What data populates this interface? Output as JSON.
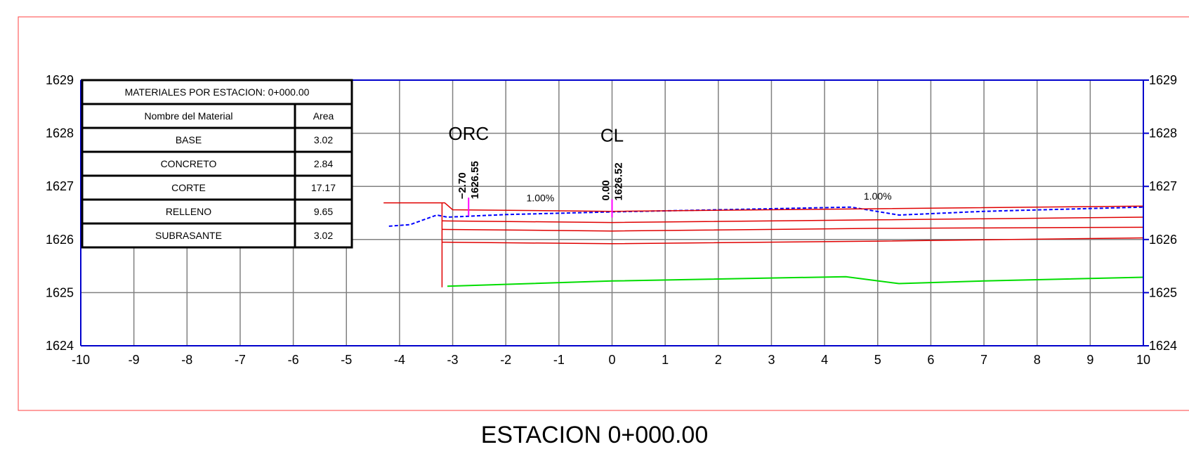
{
  "station_title": "ESTACION 0+000.00",
  "chart_data": {
    "type": "line",
    "xlim": [
      -10,
      10
    ],
    "ylim": [
      1624,
      1629
    ],
    "x_ticks": [
      "-10",
      "-9",
      "-8",
      "-7",
      "-6",
      "-5",
      "-4",
      "-3",
      "-2",
      "-1",
      "0",
      "1",
      "2",
      "3",
      "4",
      "5",
      "6",
      "7",
      "8",
      "9",
      "10"
    ],
    "y_ticks": [
      "1624",
      "1625",
      "1626",
      "1627",
      "1628",
      "1629"
    ],
    "grid": true,
    "colors": {
      "frame": "#ff4040",
      "axes": "#0000cc",
      "grid": "#808080",
      "existing_ground": "#0000ff",
      "design_layers": "#e00000",
      "base_layer": "#00dd00",
      "marker": "#ff00ff"
    },
    "series": [
      {
        "role": "existing_ground",
        "dashed": true,
        "x": [
          -4.2,
          -3.8,
          -3.3,
          -3.1,
          -2.0,
          0.0,
          2.0,
          4.5,
          5.4,
          7.0,
          10.0
        ],
        "y": [
          1626.25,
          1626.28,
          1626.46,
          1626.42,
          1626.47,
          1626.52,
          1626.56,
          1626.61,
          1626.46,
          1626.53,
          1626.61
        ]
      },
      {
        "role": "design_top",
        "x": [
          -4.3,
          -3.15,
          -3.0,
          0.0,
          5.0,
          10.0
        ],
        "y": [
          1626.69,
          1626.69,
          1626.56,
          1626.53,
          1626.58,
          1626.63
        ]
      },
      {
        "role": "design_layer",
        "x": [
          -3.2,
          0.0,
          5.0,
          10.0
        ],
        "y": [
          1626.35,
          1626.32,
          1626.37,
          1626.42
        ]
      },
      {
        "role": "design_layer",
        "x": [
          -3.2,
          0.0,
          5.0,
          10.0
        ],
        "y": [
          1626.19,
          1626.16,
          1626.21,
          1626.23
        ]
      },
      {
        "role": "design_layer",
        "x": [
          -3.2,
          0.0,
          5.0,
          10.0
        ],
        "y": [
          1625.95,
          1625.92,
          1625.97,
          1626.03
        ]
      },
      {
        "role": "cut_wall",
        "x": [
          -3.2,
          -3.2
        ],
        "y": [
          1626.69,
          1625.1
        ]
      },
      {
        "role": "base_layer",
        "x": [
          -3.1,
          0.0,
          4.4,
          5.4,
          7.0,
          10.0
        ],
        "y": [
          1625.12,
          1625.22,
          1625.3,
          1625.17,
          1625.22,
          1625.29
        ]
      }
    ],
    "annotations": [
      {
        "label": "ORC",
        "offset": "−2.70",
        "elevation": "1626.55",
        "x": -2.7,
        "y": 1626.55
      },
      {
        "label": "CL",
        "offset": "0.00",
        "elevation": "1626.52",
        "x": 0.0,
        "y": 1626.52
      }
    ],
    "slopes": [
      {
        "text": "1.00%",
        "x": -1.35,
        "y": 1626.72
      },
      {
        "text": "1.00%",
        "x": 5.0,
        "y": 1626.75
      }
    ],
    "table": {
      "title": "MATERIALES POR ESTACION: 0+000.00",
      "headers": [
        "Nombre del Material",
        "Area"
      ],
      "rows": [
        {
          "name": "BASE",
          "area": "3.02"
        },
        {
          "name": "CONCRETO",
          "area": "2.84"
        },
        {
          "name": "CORTE",
          "area": "17.17"
        },
        {
          "name": "RELLENO",
          "area": "9.65"
        },
        {
          "name": "SUBRASANTE",
          "area": "3.02"
        }
      ]
    }
  }
}
